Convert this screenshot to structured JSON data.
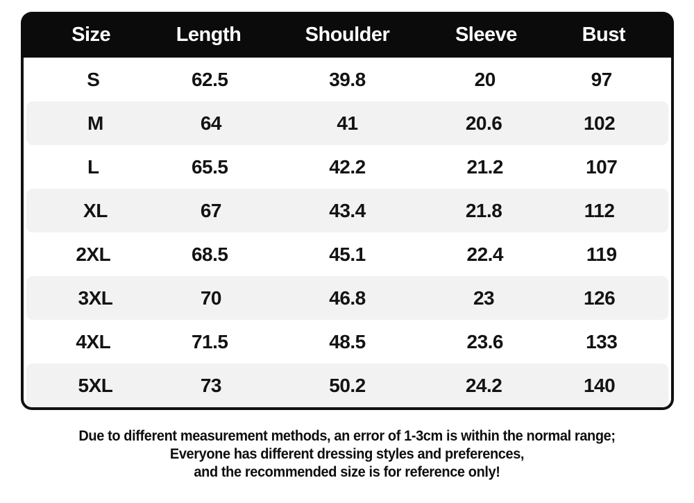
{
  "chart_data": {
    "type": "table",
    "columns": [
      "Size",
      "Length",
      "Shoulder",
      "Sleeve",
      "Bust"
    ],
    "rows": [
      [
        "S",
        "62.5",
        "39.8",
        "20",
        "97"
      ],
      [
        "M",
        "64",
        "41",
        "20.6",
        "102"
      ],
      [
        "L",
        "65.5",
        "42.2",
        "21.2",
        "107"
      ],
      [
        "XL",
        "67",
        "43.4",
        "21.8",
        "112"
      ],
      [
        "2XL",
        "68.5",
        "45.1",
        "22.4",
        "119"
      ],
      [
        "3XL",
        "70",
        "46.8",
        "23",
        "126"
      ],
      [
        "4XL",
        "71.5",
        "48.5",
        "23.6",
        "133"
      ],
      [
        "5XL",
        "73",
        "50.2",
        "24.2",
        "140"
      ]
    ]
  },
  "disclaimer": {
    "lines": [
      "Due to different measurement methods, an error of 1-3cm is within the normal range;",
      "Everyone has different dressing styles and preferences,",
      "and the recommended size is for reference only!"
    ]
  },
  "colors": {
    "header_bg": "#0b0b0b",
    "header_text": "#ffffff",
    "row_bg": "#ffffff",
    "row_alt_bg": "#f2f2f2",
    "border": "#111111",
    "text": "#131313",
    "page_bg": "#ffffff"
  }
}
